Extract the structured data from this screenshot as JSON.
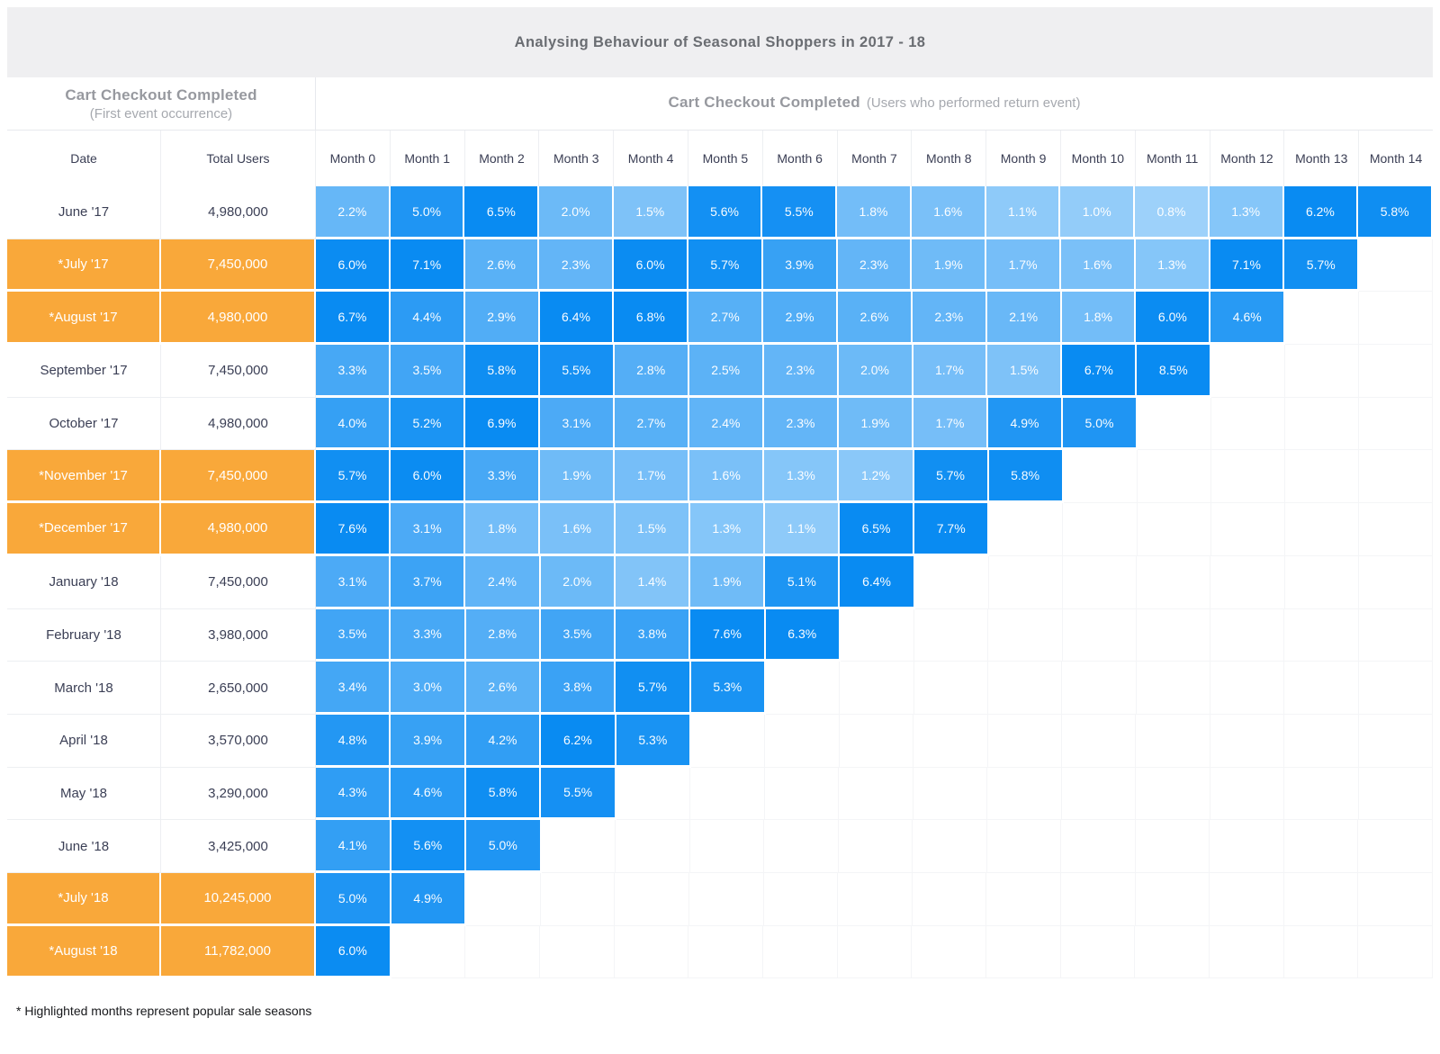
{
  "title": "Analysing Behaviour of Seasonal Shoppers in 2017 - 18",
  "event_headers": {
    "first": {
      "title": "Cart Checkout Completed",
      "subtitle": "(First event occurrence)"
    },
    "return": {
      "title": "Cart Checkout Completed",
      "subtitle": "(Users who performed return event)"
    }
  },
  "columns": {
    "date": "Date",
    "total_users": "Total Users"
  },
  "footnote": "* Highlighted months represent popular sale seasons",
  "colors": {
    "highlight_orange": "#F9A83A",
    "cell_blue": "#098BF2",
    "title_bar_bg": "#EFEFF1"
  },
  "chart_data": {
    "type": "heatmap",
    "title": "Analysing Behaviour of Seasonal Shoppers in 2017 - 18",
    "unit": "percent",
    "legend_note": "* Highlighted months represent popular sale seasons",
    "month_columns": [
      "Month 0",
      "Month 1",
      "Month 2",
      "Month 3",
      "Month 4",
      "Month 5",
      "Month 6",
      "Month 7",
      "Month 8",
      "Month 9",
      "Month 10",
      "Month 11",
      "Month 12",
      "Month 13",
      "Month 14"
    ],
    "rows": [
      {
        "date": "June '17",
        "total_users": "4,980,000",
        "highlighted": false,
        "values_pct": [
          2.2,
          5.0,
          6.5,
          2.0,
          1.5,
          5.6,
          5.5,
          1.8,
          1.6,
          1.1,
          1.0,
          0.8,
          1.3,
          6.2,
          5.8
        ]
      },
      {
        "date": "*July '17",
        "total_users": "7,450,000",
        "highlighted": true,
        "values_pct": [
          6.0,
          7.1,
          2.6,
          2.3,
          6.0,
          5.7,
          3.9,
          2.3,
          1.9,
          1.7,
          1.6,
          1.3,
          7.1,
          5.7
        ]
      },
      {
        "date": "*August '17",
        "total_users": "4,980,000",
        "highlighted": true,
        "values_pct": [
          6.7,
          4.4,
          2.9,
          6.4,
          6.8,
          2.7,
          2.9,
          2.6,
          2.3,
          2.1,
          1.8,
          6.0,
          4.6
        ]
      },
      {
        "date": "September '17",
        "total_users": "7,450,000",
        "highlighted": false,
        "values_pct": [
          3.3,
          3.5,
          5.8,
          5.5,
          2.8,
          2.5,
          2.3,
          2.0,
          1.7,
          1.5,
          6.7,
          8.5
        ]
      },
      {
        "date": "October '17",
        "total_users": "4,980,000",
        "highlighted": false,
        "values_pct": [
          4.0,
          5.2,
          6.9,
          3.1,
          2.7,
          2.4,
          2.3,
          1.9,
          1.7,
          4.9,
          5.0
        ]
      },
      {
        "date": "*November '17",
        "total_users": "7,450,000",
        "highlighted": true,
        "values_pct": [
          5.7,
          6.0,
          3.3,
          1.9,
          1.7,
          1.6,
          1.3,
          1.2,
          5.7,
          5.8
        ]
      },
      {
        "date": "*December '17",
        "total_users": "4,980,000",
        "highlighted": true,
        "values_pct": [
          7.6,
          3.1,
          1.8,
          1.6,
          1.5,
          1.3,
          1.1,
          6.5,
          7.7
        ]
      },
      {
        "date": "January '18",
        "total_users": "7,450,000",
        "highlighted": false,
        "values_pct": [
          3.1,
          3.7,
          2.4,
          2.0,
          1.4,
          1.9,
          5.1,
          6.4
        ]
      },
      {
        "date": "February '18",
        "total_users": "3,980,000",
        "highlighted": false,
        "values_pct": [
          3.5,
          3.3,
          2.8,
          3.5,
          3.8,
          7.6,
          6.3
        ]
      },
      {
        "date": "March '18",
        "total_users": "2,650,000",
        "highlighted": false,
        "values_pct": [
          3.4,
          3.0,
          2.6,
          3.8,
          5.7,
          5.3
        ]
      },
      {
        "date": "April '18",
        "total_users": "3,570,000",
        "highlighted": false,
        "values_pct": [
          4.8,
          3.9,
          4.2,
          6.2,
          5.3
        ]
      },
      {
        "date": "May '18",
        "total_users": "3,290,000",
        "highlighted": false,
        "values_pct": [
          4.3,
          4.6,
          5.8,
          5.5
        ]
      },
      {
        "date": "June '18",
        "total_users": "3,425,000",
        "highlighted": false,
        "values_pct": [
          4.1,
          5.6,
          5.0
        ]
      },
      {
        "date": "*July '18",
        "total_users": "10,245,000",
        "highlighted": true,
        "values_pct": [
          5.0,
          4.9
        ]
      },
      {
        "date": "*August '18",
        "total_users": "11,782,000",
        "highlighted": true,
        "values_pct": [
          6.0
        ]
      }
    ]
  }
}
